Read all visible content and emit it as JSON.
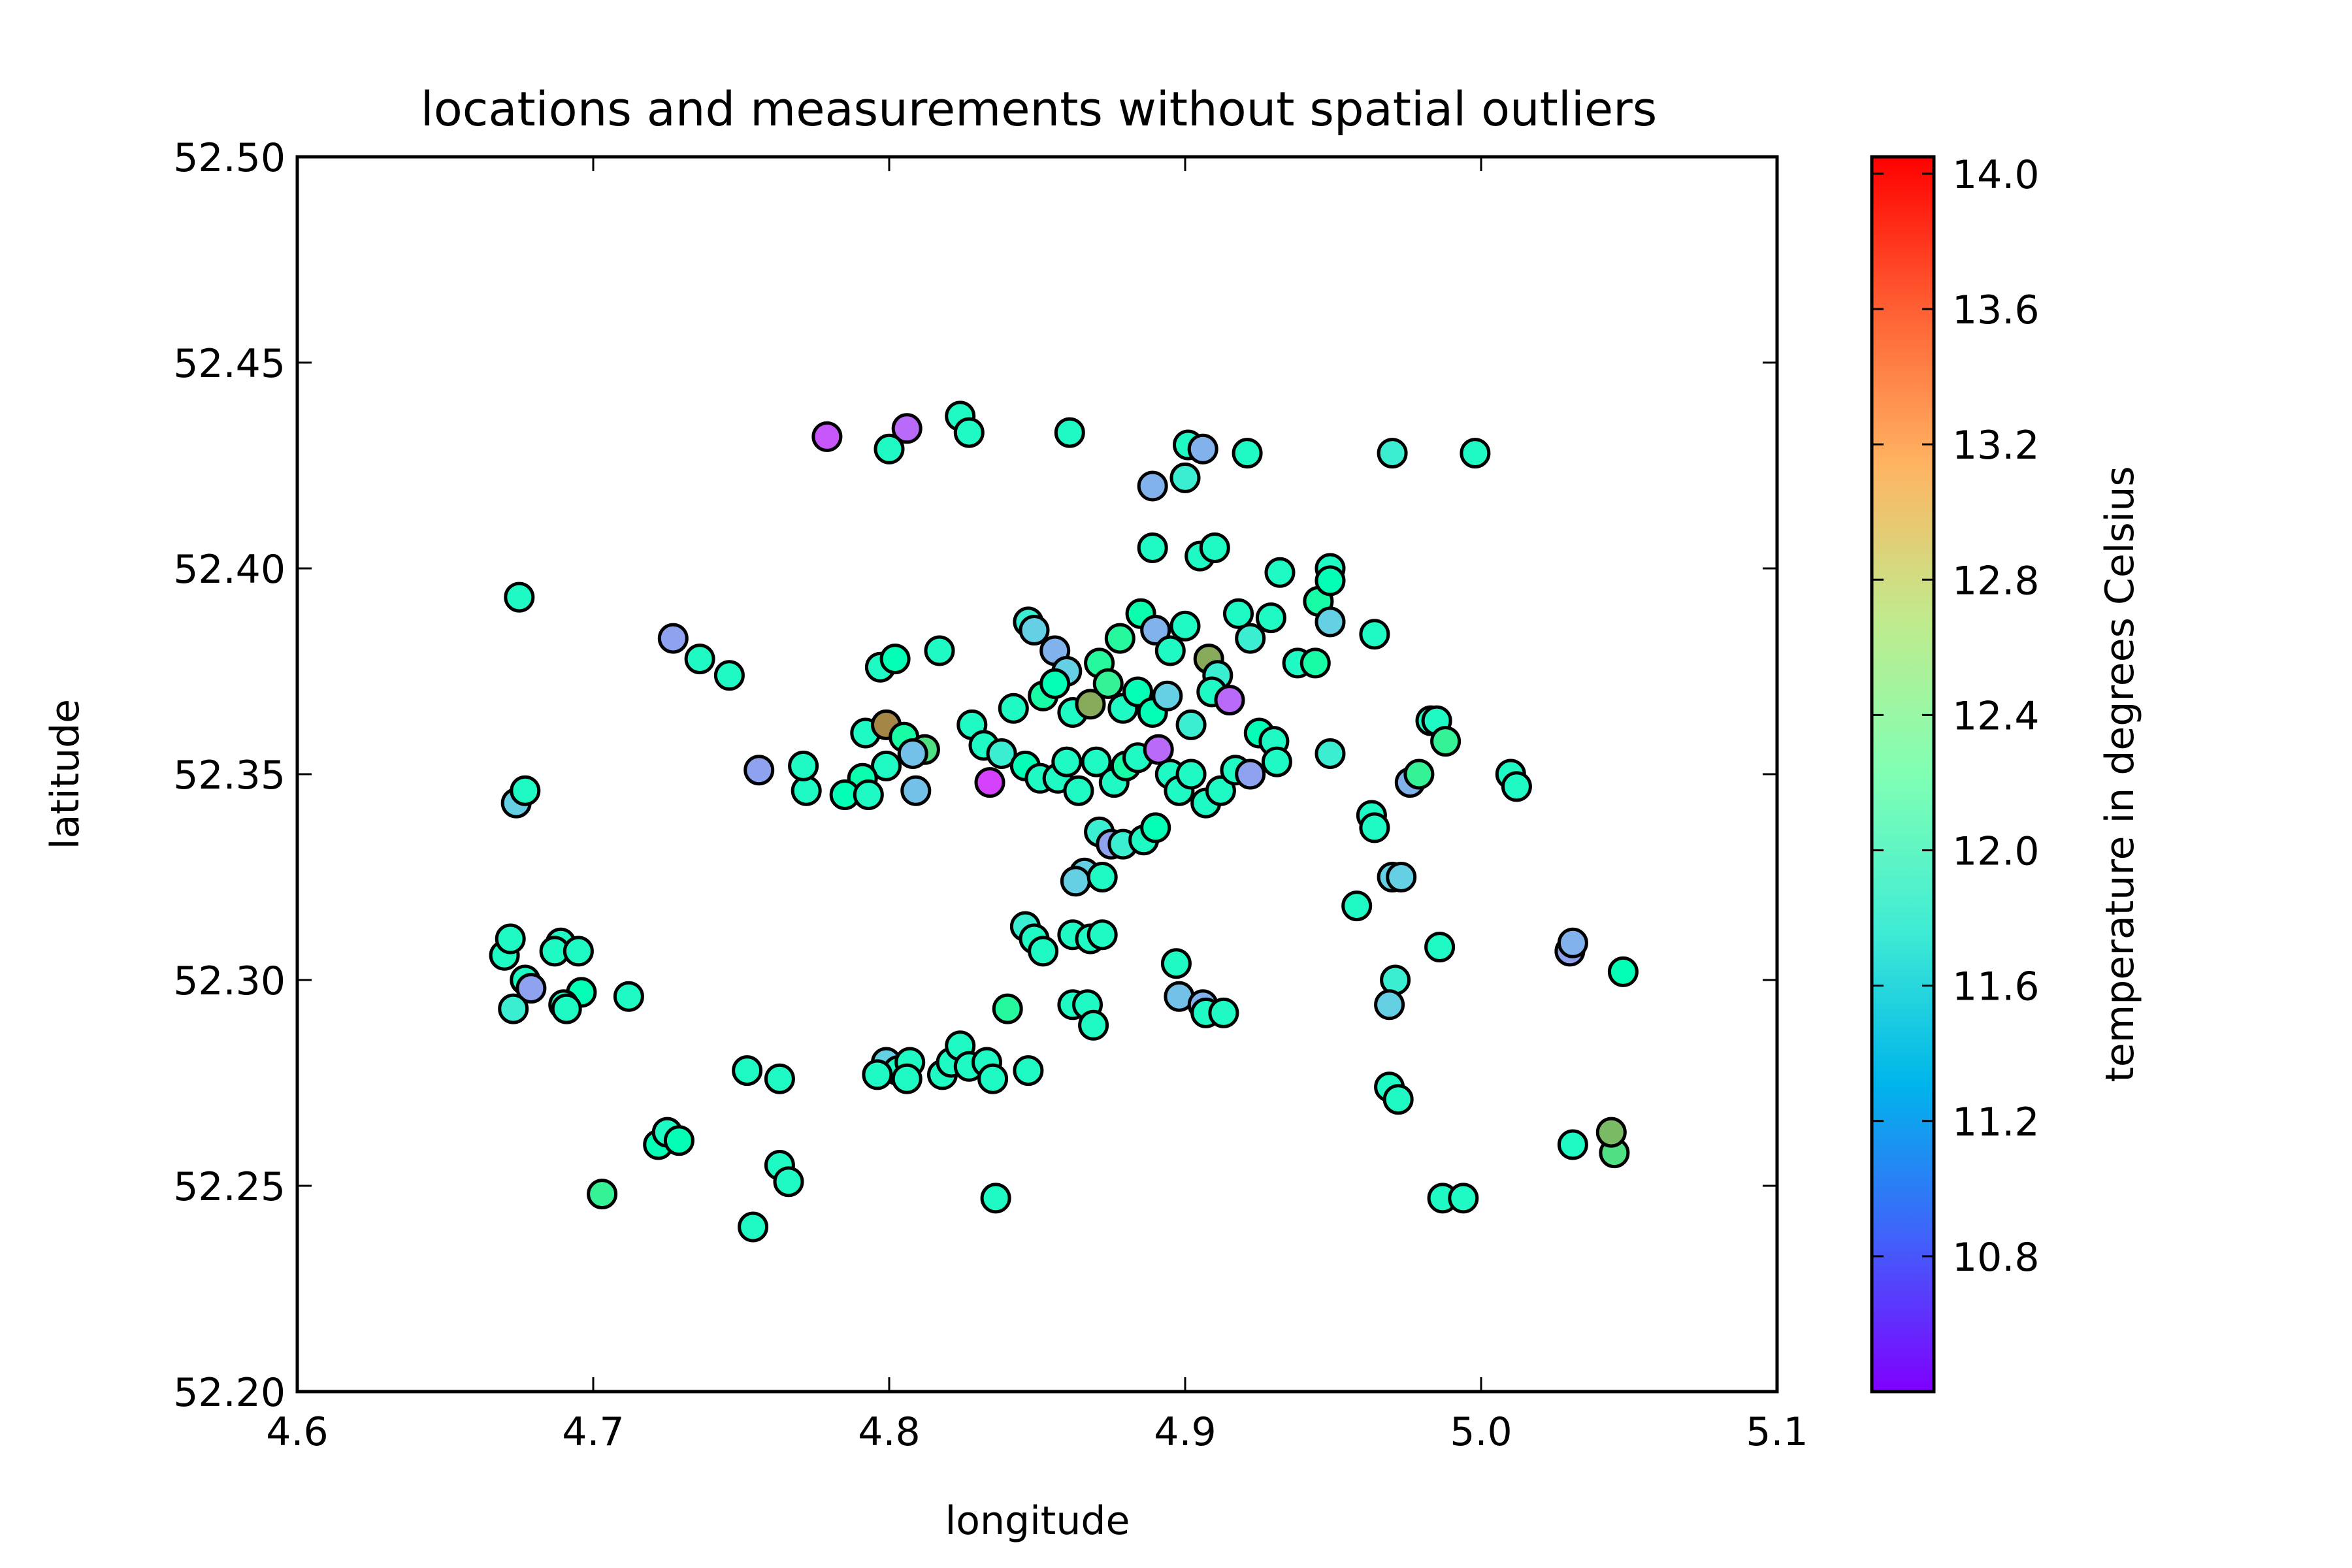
{
  "chart_data": {
    "type": "scatter",
    "title": "locations and measurements without spatial outliers",
    "xlabel": "longitude",
    "ylabel": "latitude",
    "colorbar_label": "temperature in degrees Celsius",
    "xlim": [
      4.6,
      5.1
    ],
    "ylim": [
      52.2,
      52.5
    ],
    "clim": [
      10.4,
      14.05
    ],
    "colormap": "rainbow",
    "grid": false,
    "x_ticks": [
      "4.6",
      "4.7",
      "4.8",
      "4.9",
      "5.0",
      "5.1"
    ],
    "y_ticks": [
      "52.20",
      "52.25",
      "52.30",
      "52.35",
      "52.40",
      "52.45",
      "52.50"
    ],
    "colorbar_ticks": [
      "10.8",
      "11.2",
      "11.6",
      "12.0",
      "12.4",
      "12.8",
      "13.2",
      "13.6",
      "14.0"
    ],
    "points": [
      [
        4.779,
        52.432,
        10.8
      ],
      [
        4.806,
        52.434,
        10.9
      ],
      [
        4.8,
        52.429,
        12.0
      ],
      [
        4.824,
        52.437,
        12.0
      ],
      [
        4.827,
        52.433,
        12.0
      ],
      [
        4.861,
        52.433,
        12.0
      ],
      [
        4.901,
        52.43,
        12.0
      ],
      [
        4.906,
        52.429,
        11.3
      ],
      [
        4.921,
        52.428,
        12.0
      ],
      [
        4.97,
        52.428,
        11.8
      ],
      [
        4.998,
        52.428,
        12.0
      ],
      [
        4.9,
        52.422,
        11.8
      ],
      [
        4.889,
        52.42,
        11.3
      ],
      [
        4.889,
        52.405,
        12.0
      ],
      [
        4.905,
        52.403,
        12.0
      ],
      [
        4.91,
        52.405,
        12.0
      ],
      [
        4.675,
        52.393,
        12.0
      ],
      [
        4.727,
        52.383,
        11.2
      ],
      [
        4.736,
        52.378,
        12.0
      ],
      [
        4.746,
        52.374,
        12.0
      ],
      [
        4.797,
        52.376,
        12.0
      ],
      [
        4.802,
        52.378,
        12.2
      ],
      [
        4.817,
        52.38,
        12.0
      ],
      [
        4.847,
        52.387,
        11.8
      ],
      [
        4.849,
        52.385,
        11.5
      ],
      [
        4.856,
        52.38,
        11.3
      ],
      [
        4.86,
        52.375,
        11.5
      ],
      [
        4.871,
        52.377,
        12.5
      ],
      [
        4.878,
        52.383,
        12.5
      ],
      [
        4.885,
        52.389,
        12.3
      ],
      [
        4.89,
        52.385,
        11.3
      ],
      [
        4.895,
        52.38,
        12.0
      ],
      [
        4.9,
        52.386,
        12.0
      ],
      [
        4.908,
        52.378,
        13.2
      ],
      [
        4.911,
        52.374,
        11.8
      ],
      [
        4.918,
        52.389,
        12.0
      ],
      [
        4.922,
        52.383,
        11.8
      ],
      [
        4.929,
        52.388,
        12.0
      ],
      [
        4.932,
        52.399,
        12.0
      ],
      [
        4.938,
        52.377,
        12.0
      ],
      [
        4.944,
        52.377,
        12.4
      ],
      [
        4.945,
        52.392,
        12.4
      ],
      [
        4.949,
        52.4,
        12.0
      ],
      [
        4.949,
        52.397,
        12.2
      ],
      [
        4.949,
        52.387,
        11.5
      ],
      [
        4.964,
        52.384,
        12.0
      ],
      [
        4.842,
        52.366,
        12.0
      ],
      [
        4.852,
        52.369,
        12.4
      ],
      [
        4.856,
        52.372,
        12.2
      ],
      [
        4.862,
        52.365,
        12.0
      ],
      [
        4.868,
        52.367,
        13.2
      ],
      [
        4.874,
        52.372,
        12.6
      ],
      [
        4.879,
        52.366,
        12.0
      ],
      [
        4.884,
        52.37,
        12.2
      ],
      [
        4.889,
        52.365,
        12.2
      ],
      [
        4.894,
        52.369,
        11.5
      ],
      [
        4.902,
        52.362,
        11.8
      ],
      [
        4.909,
        52.37,
        12.0
      ],
      [
        4.915,
        52.368,
        10.9
      ],
      [
        4.925,
        52.36,
        12.2
      ],
      [
        4.93,
        52.358,
        12.0
      ],
      [
        4.792,
        52.36,
        12.0
      ],
      [
        4.799,
        52.362,
        13.4
      ],
      [
        4.805,
        52.359,
        12.4
      ],
      [
        4.812,
        52.356,
        12.8
      ],
      [
        4.808,
        52.355,
        11.4
      ],
      [
        4.799,
        52.352,
        12.0
      ],
      [
        4.791,
        52.349,
        12.3
      ],
      [
        4.785,
        52.345,
        12.2
      ],
      [
        4.772,
        52.346,
        12.0
      ],
      [
        4.771,
        52.352,
        12.0
      ],
      [
        4.756,
        52.351,
        11.2
      ],
      [
        4.793,
        52.345,
        12.0
      ],
      [
        4.809,
        52.346,
        11.4
      ],
      [
        4.828,
        52.362,
        12.0
      ],
      [
        4.832,
        52.357,
        12.0
      ],
      [
        4.838,
        52.355,
        11.8
      ],
      [
        4.834,
        52.348,
        10.7
      ],
      [
        4.846,
        52.352,
        12.2
      ],
      [
        4.851,
        52.349,
        12.0
      ],
      [
        4.857,
        52.349,
        12.0
      ],
      [
        4.86,
        52.353,
        12.0
      ],
      [
        4.864,
        52.346,
        12.0
      ],
      [
        4.87,
        52.353,
        12.0
      ],
      [
        4.876,
        52.348,
        12.0
      ],
      [
        4.88,
        52.352,
        12.4
      ],
      [
        4.884,
        52.354,
        12.0
      ],
      [
        4.891,
        52.356,
        10.9
      ],
      [
        4.895,
        52.35,
        12.0
      ],
      [
        4.898,
        52.346,
        12.0
      ],
      [
        4.902,
        52.35,
        12.0
      ],
      [
        4.907,
        52.343,
        12.0
      ],
      [
        4.912,
        52.346,
        12.0
      ],
      [
        4.917,
        52.351,
        12.0
      ],
      [
        4.922,
        52.35,
        11.2
      ],
      [
        4.931,
        52.353,
        12.0
      ],
      [
        4.949,
        52.355,
        11.8
      ],
      [
        4.871,
        52.336,
        11.8
      ],
      [
        4.875,
        52.333,
        11.2
      ],
      [
        4.879,
        52.333,
        11.8
      ],
      [
        4.886,
        52.334,
        12.0
      ],
      [
        4.89,
        52.337,
        12.2
      ],
      [
        4.866,
        52.326,
        11.5
      ],
      [
        4.863,
        52.324,
        11.5
      ],
      [
        4.872,
        52.325,
        12.0
      ],
      [
        4.846,
        52.313,
        11.8
      ],
      [
        4.849,
        52.31,
        12.0
      ],
      [
        4.852,
        52.307,
        12.0
      ],
      [
        4.862,
        52.311,
        12.0
      ],
      [
        4.868,
        52.31,
        12.0
      ],
      [
        4.872,
        52.311,
        12.0
      ],
      [
        4.84,
        52.293,
        12.5
      ],
      [
        4.862,
        52.294,
        12.0
      ],
      [
        4.867,
        52.294,
        12.0
      ],
      [
        4.869,
        52.289,
        12.0
      ],
      [
        4.897,
        52.304,
        12.0
      ],
      [
        4.898,
        52.296,
        11.4
      ],
      [
        4.906,
        52.294,
        11.3
      ],
      [
        4.907,
        52.292,
        12.0
      ],
      [
        4.913,
        52.292,
        12.0
      ],
      [
        4.67,
        52.306,
        12.0
      ],
      [
        4.672,
        52.31,
        12.0
      ],
      [
        4.677,
        52.3,
        12.0
      ],
      [
        4.679,
        52.298,
        11.2
      ],
      [
        4.673,
        52.293,
        11.8
      ],
      [
        4.689,
        52.309,
        12.0
      ],
      [
        4.687,
        52.307,
        12.0
      ],
      [
        4.695,
        52.307,
        12.0
      ],
      [
        4.696,
        52.297,
        12.2
      ],
      [
        4.69,
        52.294,
        12.0
      ],
      [
        4.691,
        52.293,
        12.0
      ],
      [
        4.712,
        52.296,
        12.0
      ],
      [
        4.674,
        52.343,
        11.5
      ],
      [
        4.677,
        52.346,
        12.0
      ],
      [
        4.958,
        52.318,
        12.0
      ],
      [
        4.963,
        52.34,
        12.0
      ],
      [
        4.964,
        52.337,
        12.0
      ],
      [
        4.976,
        52.348,
        11.3
      ],
      [
        4.979,
        52.35,
        12.6
      ],
      [
        4.983,
        52.363,
        12.0
      ],
      [
        4.985,
        52.363,
        12.0
      ],
      [
        4.988,
        52.358,
        12.6
      ],
      [
        5.01,
        52.35,
        12.0
      ],
      [
        5.012,
        52.347,
        12.0
      ],
      [
        4.97,
        52.325,
        11.5
      ],
      [
        4.973,
        52.325,
        11.5
      ],
      [
        4.971,
        52.3,
        11.8
      ],
      [
        4.969,
        52.294,
        11.5
      ],
      [
        4.986,
        52.308,
        12.0
      ],
      [
        4.969,
        52.274,
        12.0
      ],
      [
        4.972,
        52.271,
        12.0
      ],
      [
        4.987,
        52.247,
        12.0
      ],
      [
        4.994,
        52.247,
        12.0
      ],
      [
        5.03,
        52.307,
        11.2
      ],
      [
        5.031,
        52.309,
        11.3
      ],
      [
        5.048,
        52.302,
        12.2
      ],
      [
        5.031,
        52.26,
        12.0
      ],
      [
        5.045,
        52.258,
        12.8
      ],
      [
        5.044,
        52.263,
        13.1
      ],
      [
        4.799,
        52.28,
        11.5
      ],
      [
        4.803,
        52.278,
        12.0
      ],
      [
        4.807,
        52.28,
        12.0
      ],
      [
        4.796,
        52.277,
        12.0
      ],
      [
        4.806,
        52.276,
        12.0
      ],
      [
        4.818,
        52.277,
        12.0
      ],
      [
        4.821,
        52.28,
        12.0
      ],
      [
        4.824,
        52.284,
        12.0
      ],
      [
        4.827,
        52.279,
        12.0
      ],
      [
        4.833,
        52.28,
        12.0
      ],
      [
        4.835,
        52.276,
        12.0
      ],
      [
        4.847,
        52.278,
        12.0
      ],
      [
        4.752,
        52.278,
        12.0
      ],
      [
        4.763,
        52.276,
        12.0
      ],
      [
        4.722,
        52.26,
        12.2
      ],
      [
        4.725,
        52.263,
        12.0
      ],
      [
        4.729,
        52.261,
        12.2
      ],
      [
        4.703,
        52.248,
        12.6
      ],
      [
        4.763,
        52.255,
        12.0
      ],
      [
        4.766,
        52.251,
        12.0
      ],
      [
        4.754,
        52.24,
        12.0
      ],
      [
        4.836,
        52.247,
        12.0
      ]
    ]
  }
}
